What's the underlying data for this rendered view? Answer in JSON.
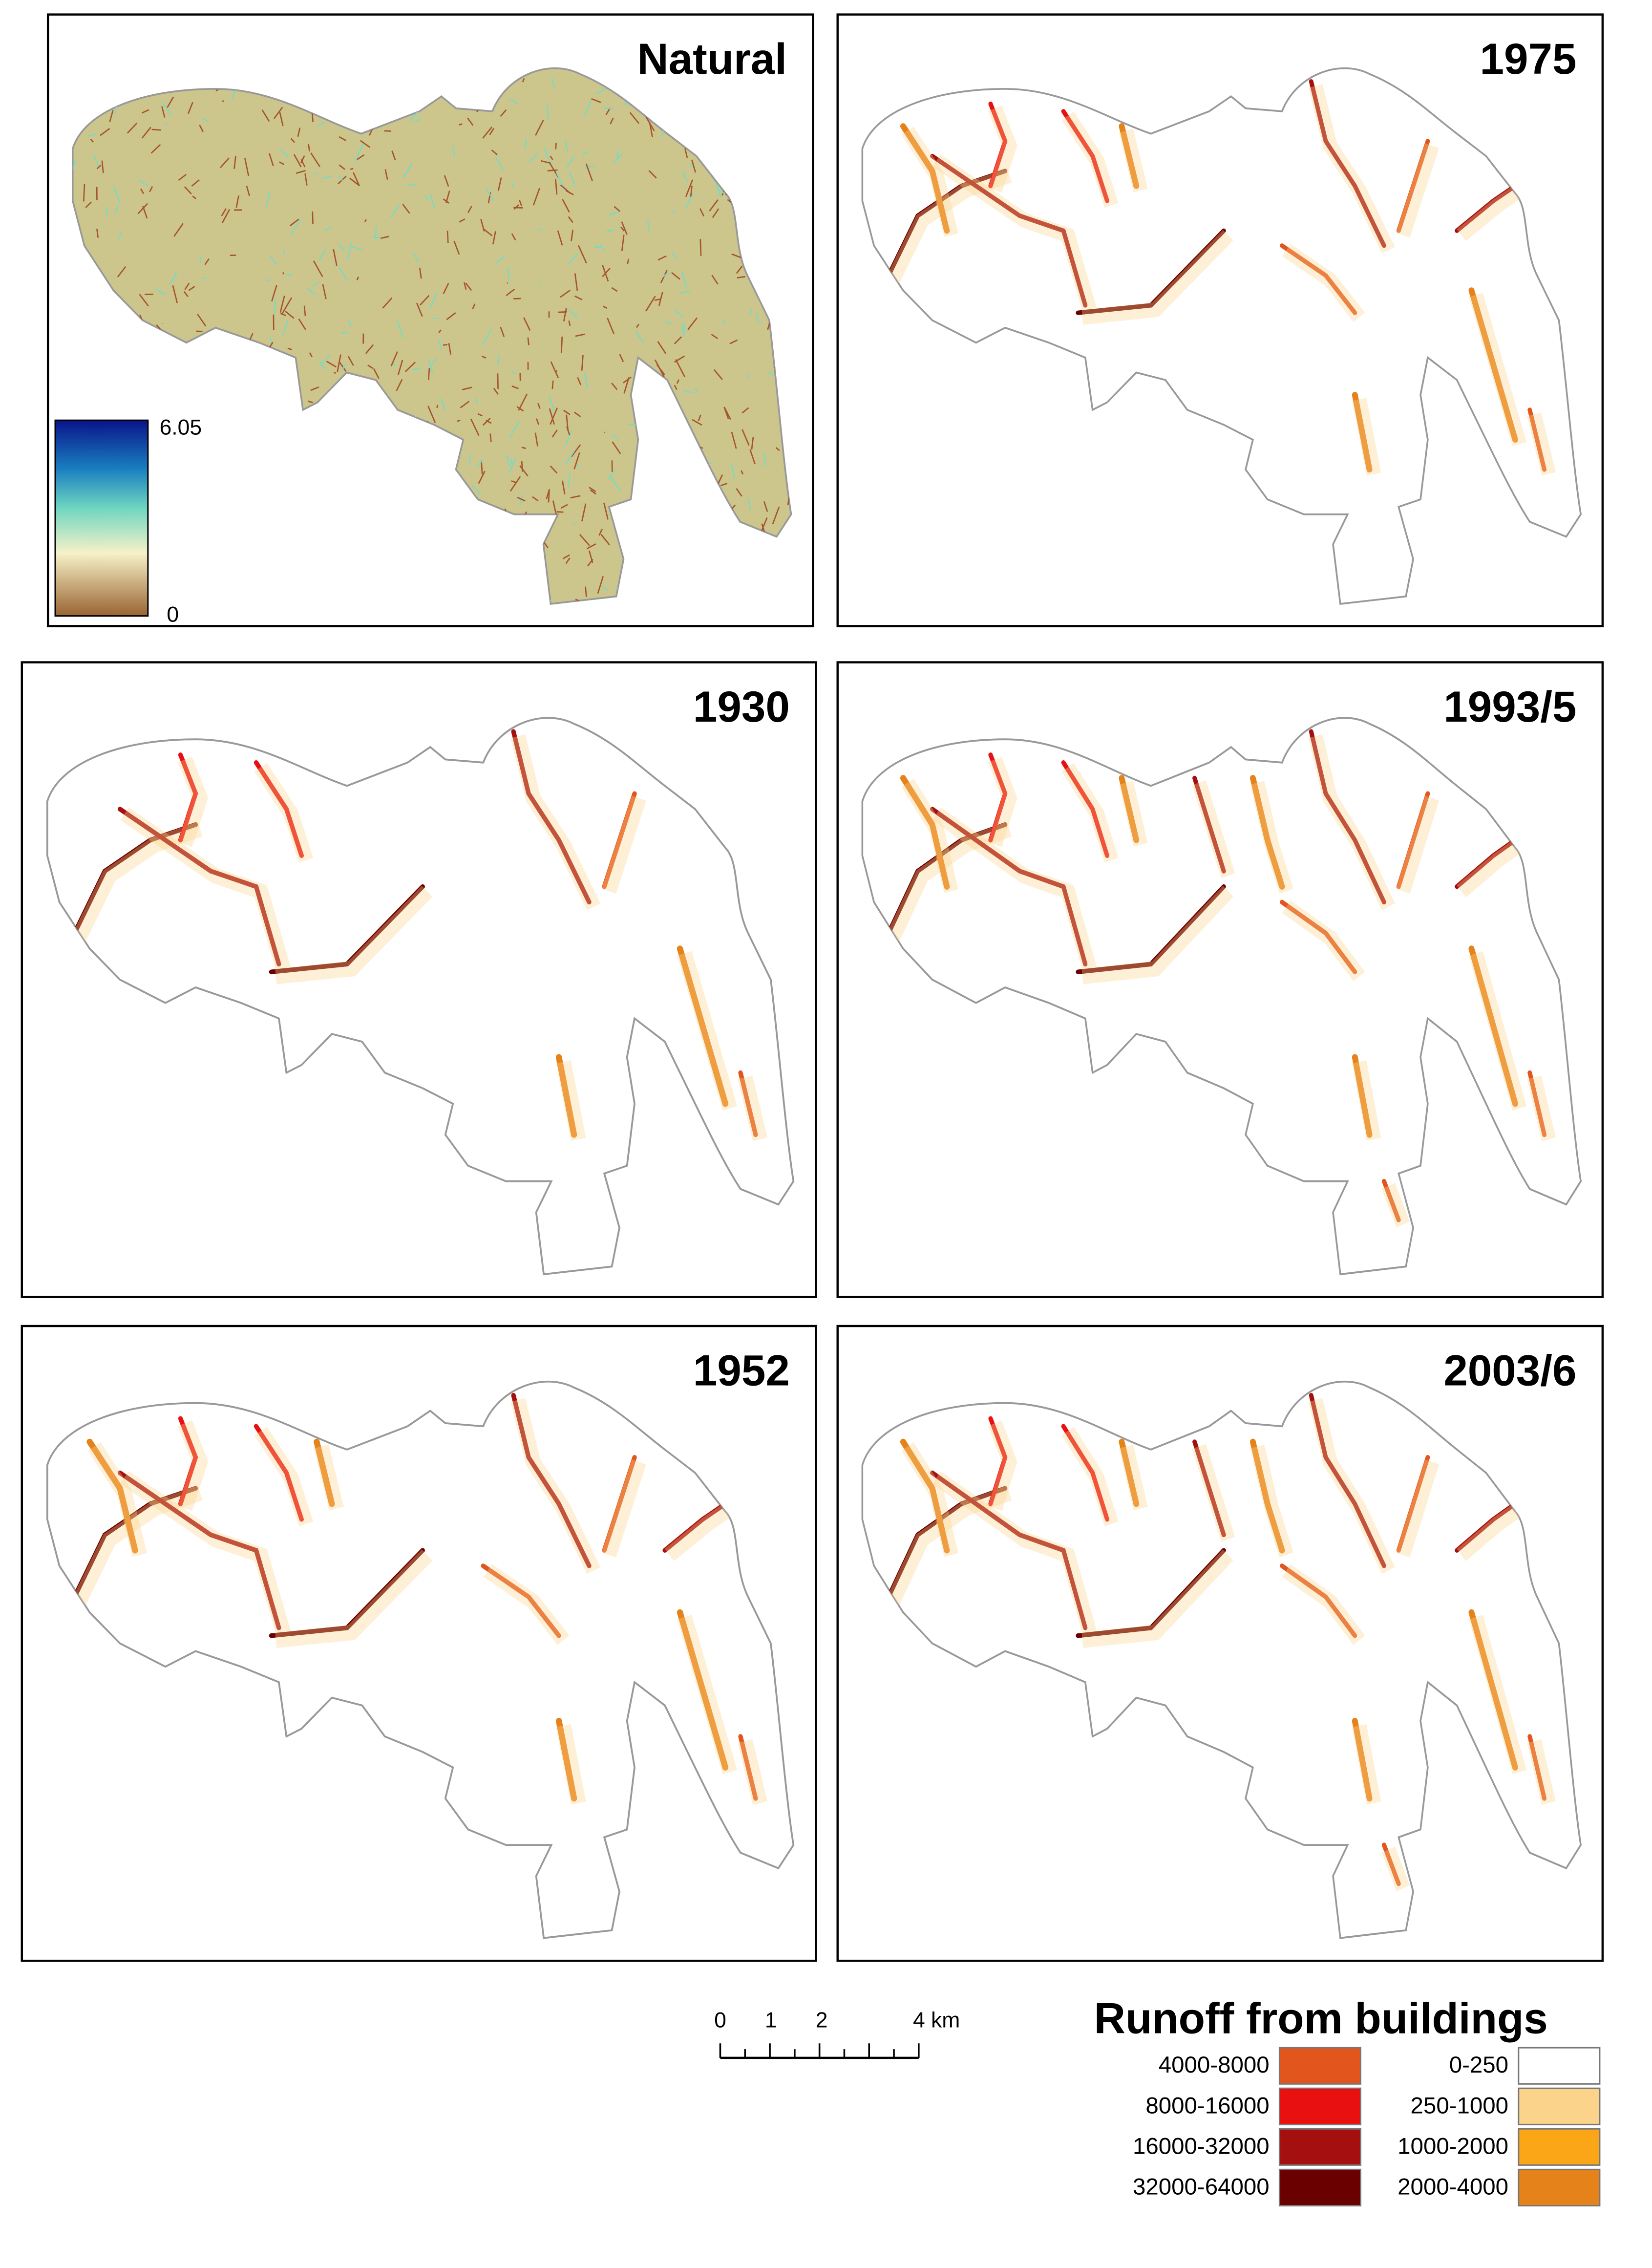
{
  "panels": [
    {
      "title": "Natural"
    },
    {
      "title": "1975"
    },
    {
      "title": "1930"
    },
    {
      "title": "1993/5"
    },
    {
      "title": "1952"
    },
    {
      "title": "2003/6"
    }
  ],
  "colorbar": {
    "max_label": "6.05",
    "min_label": "0"
  },
  "scale_bar": {
    "labels": [
      "0",
      "1",
      "2",
      "4 km"
    ]
  },
  "legend": {
    "title": "Runoff from buildings",
    "items": [
      {
        "label": "4000-8000",
        "color": "#e2561e"
      },
      {
        "label": "8000-16000",
        "color": "#e81010"
      },
      {
        "label": "16000-32000",
        "color": "#a50f10"
      },
      {
        "label": "32000-64000",
        "color": "#6b0000"
      },
      {
        "label": "0-250",
        "color": "#ffffff"
      },
      {
        "label": "250-1000",
        "color": "#fcd38a"
      },
      {
        "label": "1000-2000",
        "color": "#fba617"
      },
      {
        "label": "2000-4000",
        "color": "#e6821a"
      }
    ]
  }
}
